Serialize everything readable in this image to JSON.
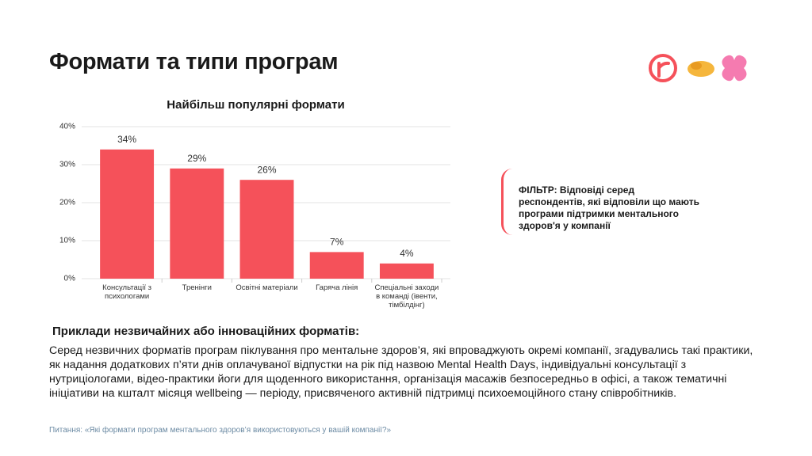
{
  "title": "Формати та типи програм",
  "chart_data": {
    "type": "bar",
    "title": "Найбільш популярні формати",
    "categories": [
      "Консультації з психологами",
      "Тренінги",
      "Освітні матеріали",
      "Гаряча лінія",
      "Спеціальні заходи в команді (івенти, тімбілдінг)"
    ],
    "values": [
      34,
      29,
      26,
      7,
      4
    ],
    "value_labels": [
      "34%",
      "29%",
      "26%",
      "7%",
      "4%"
    ],
    "color": "#f5515a",
    "ylim": [
      0,
      40
    ],
    "yticks": [
      {
        "value": 0,
        "label": "0%"
      },
      {
        "value": 10,
        "label": "10%"
      },
      {
        "value": 20,
        "label": "20%"
      },
      {
        "value": 30,
        "label": "30%"
      },
      {
        "value": 40,
        "label": "40%"
      }
    ],
    "grid": true
  },
  "filter": "ФІЛЬТР: Відповіді серед респондентів, які відповіли що мають програми підтримки ментального здоров'я у компанії",
  "examples": {
    "heading": "Приклади незвичайних або інноваційних форматів:",
    "body": "Серед незвичних форматів програм піклування про ментальне здоров’я, які впроваджують окремі компанії, згадувались такі практики, як надання додаткових п’яти днів оплачуваної відпустки на рік під назвою Mental Health Days, індивідуальні консультації з нутриціологами, відео-практики йоги для щоденного використання, організація масажів безпосередньо в офісі, а також тематичні ініціативи на кшталт місяця wellbeing — періоду, присвяченого активній підтримці психоемоційного стану співробітників."
  },
  "source": "Питання: «Які формати програм ментального здоров’я використовуються у вашій компанії?»"
}
